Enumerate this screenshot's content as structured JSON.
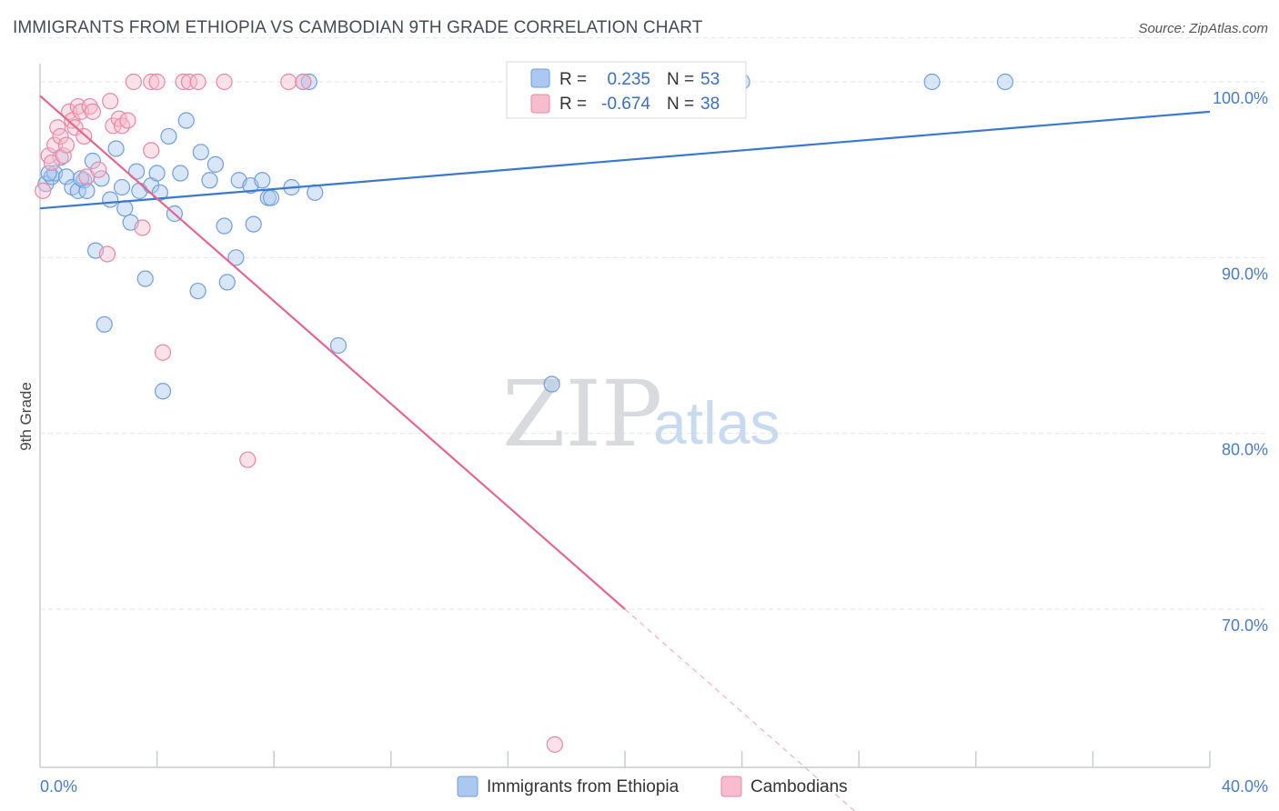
{
  "title": "IMMIGRANTS FROM ETHIOPIA VS CAMBODIAN 9TH GRADE CORRELATION CHART",
  "source": "Source: ZipAtlas.com",
  "watermark": {
    "zip": "ZIP",
    "atlas": "atlas"
  },
  "colors": {
    "blue_fill": "#aac8f0",
    "blue_stroke": "#6f9fdc",
    "blue_line": "#3b78d0",
    "pink_fill": "#f7bccd",
    "pink_stroke": "#e888a8",
    "pink_line": "#e3668f",
    "grid": "#e4e6ea",
    "tick_text": "#4a7cc4"
  },
  "legend": {
    "r_label": "R =",
    "n_label": "N =",
    "rows": [
      {
        "series": "Immigrants from Ethiopia",
        "r": "0.235",
        "n": "53"
      },
      {
        "series": "Cambodians",
        "r": "-0.674",
        "n": "38"
      }
    ]
  },
  "chart_data": {
    "type": "scatter",
    "xlabel": "",
    "ylabel": "9th Grade",
    "xlim": [
      0,
      40
    ],
    "ylim": [
      61,
      103
    ],
    "x_tick_labels": [
      "0.0%",
      "40.0%"
    ],
    "y_ticks": [
      70,
      80,
      90,
      100
    ],
    "y_tick_labels": [
      "70.0%",
      "80.0%",
      "90.0%",
      "100.0%"
    ],
    "grid": true,
    "series": [
      {
        "name": "Immigrants from Ethiopia",
        "color": "blue",
        "trend": {
          "x0": 0,
          "y0": 92.8,
          "x1": 40,
          "y1": 98.3
        },
        "points": [
          [
            0.2,
            94.2
          ],
          [
            0.4,
            94.6
          ],
          [
            0.5,
            94.8
          ],
          [
            0.7,
            95.7
          ],
          [
            0.9,
            94.6
          ],
          [
            1.1,
            94.0
          ],
          [
            1.3,
            93.8
          ],
          [
            1.5,
            94.4
          ],
          [
            1.6,
            93.8
          ],
          [
            1.8,
            95.5
          ],
          [
            1.9,
            90.4
          ],
          [
            2.1,
            94.5
          ],
          [
            2.2,
            86.2
          ],
          [
            2.4,
            93.3
          ],
          [
            2.6,
            96.2
          ],
          [
            2.8,
            94.0
          ],
          [
            2.9,
            92.8
          ],
          [
            3.1,
            92.0
          ],
          [
            3.3,
            94.9
          ],
          [
            3.4,
            93.8
          ],
          [
            3.6,
            88.8
          ],
          [
            3.8,
            94.1
          ],
          [
            4.0,
            94.8
          ],
          [
            4.1,
            93.7
          ],
          [
            4.2,
            82.4
          ],
          [
            4.4,
            96.9
          ],
          [
            4.6,
            92.5
          ],
          [
            4.8,
            94.8
          ],
          [
            5.0,
            97.8
          ],
          [
            5.4,
            88.1
          ],
          [
            5.5,
            96.0
          ],
          [
            5.8,
            94.4
          ],
          [
            6.0,
            95.3
          ],
          [
            6.3,
            91.8
          ],
          [
            6.4,
            88.6
          ],
          [
            6.7,
            90.0
          ],
          [
            6.8,
            94.4
          ],
          [
            7.2,
            94.1
          ],
          [
            7.3,
            91.9
          ],
          [
            7.6,
            94.4
          ],
          [
            7.8,
            93.4
          ],
          [
            7.9,
            93.4
          ],
          [
            8.6,
            94.0
          ],
          [
            9.0,
            100.0
          ],
          [
            9.2,
            100.0
          ],
          [
            9.4,
            93.7
          ],
          [
            10.2,
            85.0
          ],
          [
            17.5,
            82.8
          ],
          [
            24.0,
            100.0
          ],
          [
            30.5,
            100.0
          ],
          [
            33.0,
            100.0
          ],
          [
            0.3,
            94.8
          ],
          [
            1.4,
            94.5
          ]
        ]
      },
      {
        "name": "Cambodians",
        "color": "pink",
        "trend": {
          "x0": 0,
          "y0": 99.2,
          "x1": 20,
          "y1": 70.0,
          "dash_to_x": 28,
          "dash_to_y": 58.3
        },
        "points": [
          [
            0.1,
            93.8
          ],
          [
            0.3,
            95.8
          ],
          [
            0.4,
            95.4
          ],
          [
            0.5,
            96.4
          ],
          [
            0.6,
            97.4
          ],
          [
            0.7,
            96.9
          ],
          [
            0.8,
            95.8
          ],
          [
            0.9,
            96.4
          ],
          [
            1.0,
            98.3
          ],
          [
            1.1,
            97.8
          ],
          [
            1.2,
            97.4
          ],
          [
            1.3,
            98.6
          ],
          [
            1.4,
            98.3
          ],
          [
            1.5,
            96.9
          ],
          [
            1.6,
            94.6
          ],
          [
            1.7,
            98.6
          ],
          [
            1.8,
            98.3
          ],
          [
            2.0,
            95.0
          ],
          [
            2.3,
            90.2
          ],
          [
            2.4,
            98.9
          ],
          [
            2.5,
            97.5
          ],
          [
            2.7,
            97.9
          ],
          [
            2.8,
            97.5
          ],
          [
            3.0,
            97.8
          ],
          [
            3.2,
            100.0
          ],
          [
            3.5,
            91.7
          ],
          [
            3.8,
            96.1
          ],
          [
            3.8,
            100.0
          ],
          [
            4.0,
            100.0
          ],
          [
            4.2,
            84.6
          ],
          [
            4.9,
            100.0
          ],
          [
            5.1,
            100.0
          ],
          [
            5.4,
            100.0
          ],
          [
            6.3,
            100.0
          ],
          [
            7.1,
            78.5
          ],
          [
            8.5,
            100.0
          ],
          [
            9.0,
            100.0
          ],
          [
            17.6,
            62.3
          ]
        ]
      }
    ]
  }
}
